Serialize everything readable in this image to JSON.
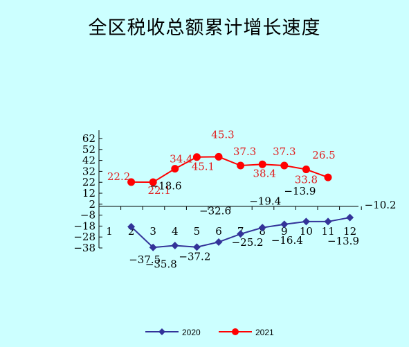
{
  "chart_data": {
    "type": "line",
    "title": "全区税收总额累计增长速度",
    "categories": [
      "1",
      "2",
      "3",
      "4",
      "5",
      "6",
      "7",
      "8",
      "9",
      "10",
      "11",
      "12"
    ],
    "yticks": [
      "62",
      "52",
      "42",
      "32",
      "22",
      "12",
      "2",
      "-8",
      "-18",
      "-28",
      "-38"
    ],
    "ylim": [
      -38,
      62
    ],
    "series": [
      {
        "name": "2020",
        "color": "#333399",
        "marker": "diamond",
        "values": [
          null,
          -18.6,
          -37.5,
          -35.8,
          -37.2,
          -32.6,
          -25.2,
          -19.4,
          -16.4,
          -13.9,
          -13.9,
          -10.2
        ],
        "labels": [
          null,
          "-18.6",
          "-37.5",
          "-35.8",
          "-37.2",
          "-32.6",
          "-25.2",
          "-19.4",
          "-16.4",
          "-13.9",
          "-13.9",
          "-10.2"
        ]
      },
      {
        "name": "2021",
        "color": "#ff0000",
        "marker": "circle",
        "values": [
          null,
          22.2,
          22.1,
          34.4,
          45.1,
          45.3,
          37.3,
          38.4,
          37.3,
          33.8,
          26.5,
          null
        ],
        "labels": [
          null,
          "22.2",
          "22.1",
          "34.4",
          "45.1",
          "45.3",
          "37.3",
          "38.4",
          "37.3",
          "33.8",
          "26.5",
          null
        ]
      }
    ],
    "legend_position": "bottom"
  }
}
